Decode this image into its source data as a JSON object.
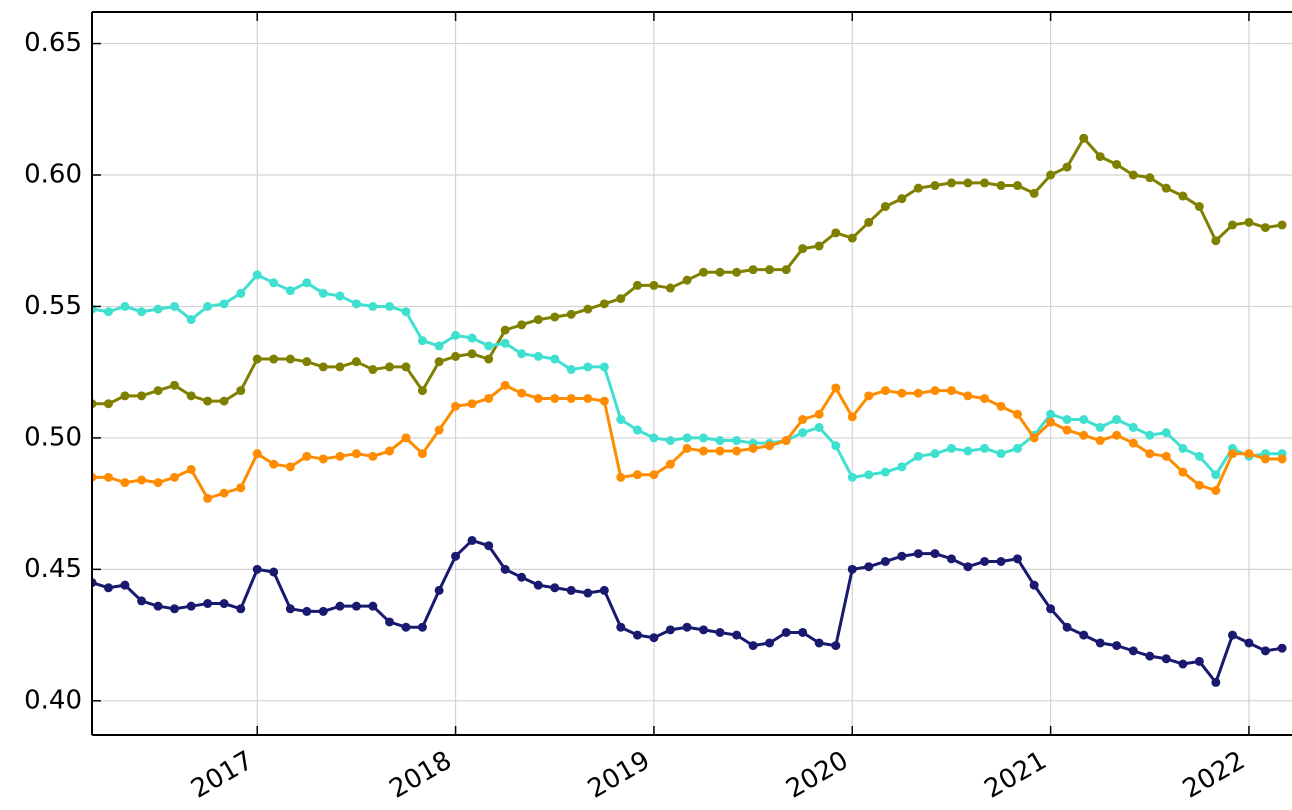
{
  "chart_data": {
    "type": "line",
    "x": [
      2016.167,
      2016.25,
      2016.333,
      2016.417,
      2016.5,
      2016.583,
      2016.667,
      2016.75,
      2016.833,
      2016.917,
      2017,
      2017.083,
      2017.167,
      2017.25,
      2017.333,
      2017.417,
      2017.5,
      2017.583,
      2017.667,
      2017.75,
      2017.833,
      2017.917,
      2018,
      2018.083,
      2018.167,
      2018.25,
      2018.333,
      2018.417,
      2018.5,
      2018.583,
      2018.667,
      2018.75,
      2018.833,
      2018.917,
      2019,
      2019.083,
      2019.167,
      2019.25,
      2019.333,
      2019.417,
      2019.5,
      2019.583,
      2019.667,
      2019.75,
      2019.833,
      2019.917,
      2020,
      2020.083,
      2020.167,
      2020.25,
      2020.333,
      2020.417,
      2020.5,
      2020.583,
      2020.667,
      2020.75,
      2020.833,
      2020.917,
      2021,
      2021.083,
      2021.167,
      2021.25,
      2021.333,
      2021.417,
      2021.5,
      2021.583,
      2021.667,
      2021.75,
      2021.833,
      2021.917,
      2022,
      2022.083,
      2022.167
    ],
    "series": [
      {
        "color": "#191970",
        "values": [
          0.445,
          0.443,
          0.444,
          0.438,
          0.436,
          0.435,
          0.436,
          0.437,
          0.437,
          0.435,
          0.45,
          0.449,
          0.435,
          0.434,
          0.434,
          0.436,
          0.436,
          0.436,
          0.43,
          0.428,
          0.428,
          0.442,
          0.455,
          0.461,
          0.459,
          0.45,
          0.447,
          0.444,
          0.443,
          0.442,
          0.441,
          0.442,
          0.428,
          0.425,
          0.424,
          0.427,
          0.428,
          0.427,
          0.426,
          0.425,
          0.421,
          0.422,
          0.426,
          0.426,
          0.422,
          0.421,
          0.45,
          0.451,
          0.453,
          0.455,
          0.456,
          0.456,
          0.454,
          0.451,
          0.453,
          0.453,
          0.454,
          0.444,
          0.435,
          0.428,
          0.425,
          0.422,
          0.421,
          0.419,
          0.417,
          0.416,
          0.414,
          0.415,
          0.407,
          0.425,
          0.422,
          0.419,
          0.42
        ]
      },
      {
        "color": "#808000",
        "values": [
          0.513,
          0.513,
          0.516,
          0.516,
          0.518,
          0.52,
          0.516,
          0.514,
          0.514,
          0.518,
          0.53,
          0.53,
          0.53,
          0.529,
          0.527,
          0.527,
          0.529,
          0.526,
          0.527,
          0.527,
          0.518,
          0.529,
          0.531,
          0.532,
          0.53,
          0.541,
          0.543,
          0.545,
          0.546,
          0.547,
          0.549,
          0.551,
          0.553,
          0.558,
          0.558,
          0.557,
          0.56,
          0.563,
          0.563,
          0.563,
          0.564,
          0.564,
          0.564,
          0.572,
          0.573,
          0.578,
          0.576,
          0.582,
          0.588,
          0.591,
          0.595,
          0.596,
          0.597,
          0.597,
          0.597,
          0.596,
          0.596,
          0.593,
          0.6,
          0.603,
          0.614,
          0.607,
          0.604,
          0.6,
          0.599,
          0.595,
          0.592,
          0.588,
          0.575,
          0.581,
          0.582,
          0.58,
          0.581
        ]
      },
      {
        "color": "#40e0d0",
        "values": [
          0.549,
          0.548,
          0.55,
          0.548,
          0.549,
          0.55,
          0.545,
          0.55,
          0.551,
          0.555,
          0.562,
          0.559,
          0.556,
          0.559,
          0.555,
          0.554,
          0.551,
          0.55,
          0.55,
          0.548,
          0.537,
          0.535,
          0.539,
          0.538,
          0.535,
          0.536,
          0.532,
          0.531,
          0.53,
          0.526,
          0.527,
          0.527,
          0.507,
          0.503,
          0.5,
          0.499,
          0.5,
          0.5,
          0.499,
          0.499,
          0.498,
          0.498,
          0.499,
          0.502,
          0.504,
          0.497,
          0.485,
          0.486,
          0.487,
          0.489,
          0.493,
          0.494,
          0.496,
          0.495,
          0.496,
          0.494,
          0.496,
          0.501,
          0.509,
          0.507,
          0.507,
          0.504,
          0.507,
          0.504,
          0.501,
          0.502,
          0.496,
          0.493,
          0.486,
          0.496,
          0.493,
          0.494,
          0.494
        ]
      },
      {
        "color": "#ff8c00",
        "values": [
          0.485,
          0.485,
          0.483,
          0.484,
          0.483,
          0.485,
          0.488,
          0.477,
          0.479,
          0.481,
          0.494,
          0.49,
          0.489,
          0.493,
          0.492,
          0.493,
          0.494,
          0.493,
          0.495,
          0.5,
          0.494,
          0.503,
          0.512,
          0.513,
          0.515,
          0.52,
          0.517,
          0.515,
          0.515,
          0.515,
          0.515,
          0.514,
          0.485,
          0.486,
          0.486,
          0.49,
          0.496,
          0.495,
          0.495,
          0.495,
          0.496,
          0.497,
          0.499,
          0.507,
          0.509,
          0.519,
          0.508,
          0.516,
          0.518,
          0.517,
          0.517,
          0.518,
          0.518,
          0.516,
          0.515,
          0.512,
          0.509,
          0.5,
          0.506,
          0.503,
          0.501,
          0.499,
          0.501,
          0.498,
          0.494,
          0.493,
          0.487,
          0.482,
          0.48,
          0.494,
          0.494,
          0.492,
          0.492
        ]
      }
    ],
    "xlim": [
      2016.167,
      2022.217
    ],
    "xticks": [
      2017,
      2018,
      2019,
      2020,
      2021,
      2022
    ],
    "ylim": [
      0.387,
      0.662
    ],
    "yticks": [
      {
        "value": 0.4,
        "label": "0.40"
      },
      {
        "value": 0.45,
        "label": "0.45"
      },
      {
        "value": 0.5,
        "label": "0.50"
      },
      {
        "value": 0.55,
        "label": "0.55"
      },
      {
        "value": 0.6,
        "label": "0.60"
      },
      {
        "value": 0.65,
        "label": "0.65"
      }
    ],
    "grid": true
  }
}
